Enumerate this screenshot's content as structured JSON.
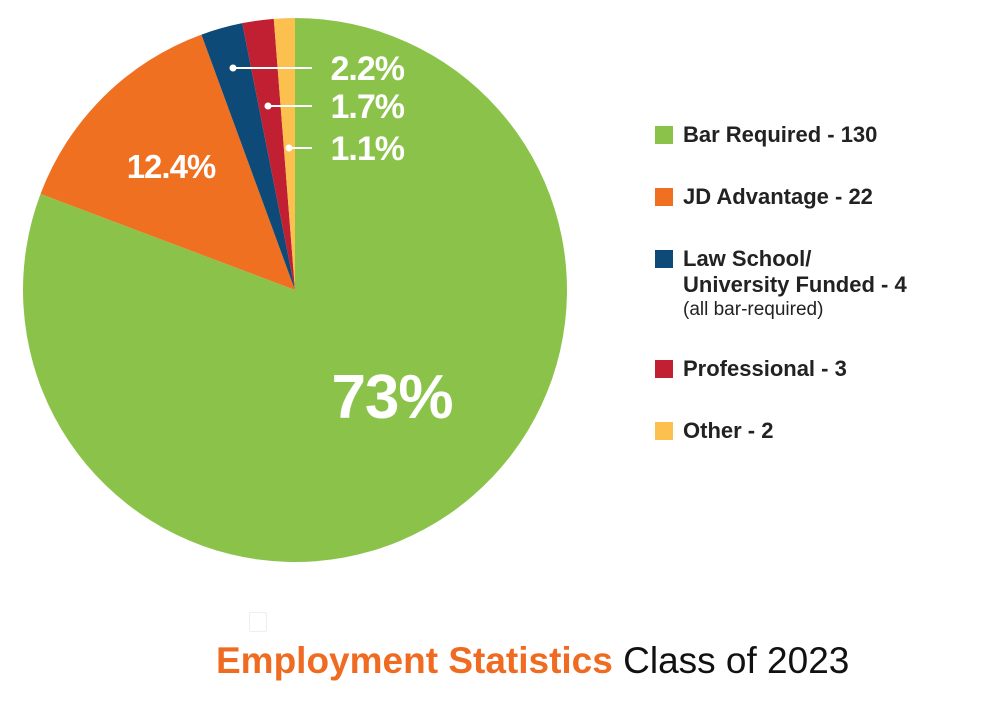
{
  "chart_data": {
    "type": "pie",
    "title": "Employment Statistics",
    "subtitle": "Class of 2023",
    "slices": [
      {
        "name": "Bar Required",
        "count": 130,
        "label": "73%",
        "color": "#8bc34a",
        "legend": "Bar Required - 130"
      },
      {
        "name": "JD Advantage",
        "count": 22,
        "label": "12.4%",
        "color": "#f07022",
        "legend": "JD Advantage - 22"
      },
      {
        "name": "Law School/University Funded",
        "count": 4,
        "label": "2.2%",
        "color": "#0e4a78",
        "legend_lines": [
          "Law School/",
          "University Funded - 4"
        ],
        "note": "(all bar-required)"
      },
      {
        "name": "Professional",
        "count": 3,
        "label": "1.7%",
        "color": "#c11f32",
        "legend": "Professional - 3"
      },
      {
        "name": "Other",
        "count": 2,
        "label": "1.1%",
        "color": "#fbc04e",
        "legend": "Other - 2"
      }
    ],
    "start": "top",
    "direction": "clockwise",
    "legend_position": "right"
  }
}
